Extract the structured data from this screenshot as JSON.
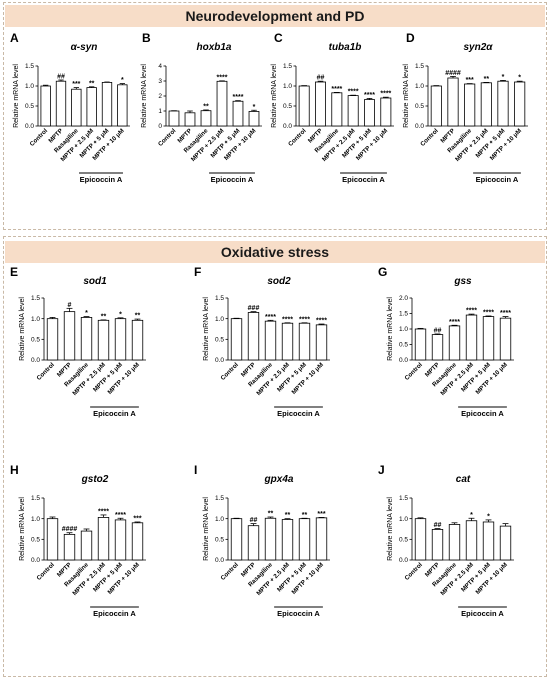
{
  "sections": [
    {
      "title": "Neurodevelopment and PD"
    },
    {
      "title": "Oxidative stress"
    }
  ],
  "chart_data": [
    {
      "type": "bar",
      "panel": "A",
      "title": "α-syn",
      "ylabel": "Relative mRNA level",
      "categories": [
        "Control",
        "MPTP",
        "Rasagiline",
        "MPTP + 2.5 μM",
        "MPTP + 5 μM",
        "MPTP + 10 μM"
      ],
      "values": [
        1.0,
        1.12,
        0.92,
        0.96,
        1.09,
        1.03
      ],
      "errors": [
        0.02,
        0.03,
        0.04,
        0.02,
        0.01,
        0.03
      ],
      "significance": [
        "",
        "##",
        "***",
        "**",
        "",
        "*"
      ],
      "ylim": [
        0,
        1.5
      ],
      "yticks": [
        0.0,
        0.5,
        1.0,
        1.5
      ],
      "tick_format": 1,
      "group_label": "Epicoccin A",
      "group_span": [
        3,
        5
      ]
    },
    {
      "type": "bar",
      "panel": "B",
      "title": "hoxb1a",
      "ylabel": "Relative mRNA level",
      "categories": [
        "Control",
        "MPTP",
        "Rasagiline",
        "MPTP + 2.5 μM",
        "MPTP + 5 μM",
        "MPTP + 10 μM"
      ],
      "values": [
        1.0,
        0.88,
        1.02,
        2.98,
        1.65,
        0.97
      ],
      "errors": [
        0.02,
        0.12,
        0.05,
        0.03,
        0.04,
        0.08
      ],
      "significance": [
        "",
        "",
        "**",
        "****",
        "****",
        "*"
      ],
      "ylim": [
        0,
        4
      ],
      "yticks": [
        0,
        1,
        2,
        3,
        4
      ],
      "tick_format": 0,
      "group_label": "Epicoccin A",
      "group_span": [
        3,
        5
      ]
    },
    {
      "type": "bar",
      "panel": "C",
      "title": "tuba1b",
      "ylabel": "Relative mRNA level",
      "categories": [
        "Control",
        "MPTP",
        "Rasagiline",
        "MPTP + 2.5 μM",
        "MPTP + 5 μM",
        "MPTP + 10 μM"
      ],
      "values": [
        1.0,
        1.1,
        0.83,
        0.76,
        0.66,
        0.7
      ],
      "errors": [
        0.01,
        0.02,
        0.01,
        0.01,
        0.03,
        0.02
      ],
      "significance": [
        "",
        "##",
        "****",
        "****",
        "****",
        "****"
      ],
      "ylim": [
        0,
        1.5
      ],
      "yticks": [
        0.0,
        0.5,
        1.0,
        1.5
      ],
      "tick_format": 1,
      "group_label": "Epicoccin A",
      "group_span": [
        3,
        5
      ]
    },
    {
      "type": "bar",
      "panel": "D",
      "title": "syn2α",
      "ylabel": "Relative mRNA level",
      "categories": [
        "Control",
        "MPTP",
        "Rasagiline",
        "MPTP + 2.5 μM",
        "MPTP + 5 μM",
        "MPTP + 10 μM"
      ],
      "values": [
        1.0,
        1.2,
        1.05,
        1.08,
        1.12,
        1.1
      ],
      "errors": [
        0.01,
        0.04,
        0.01,
        0.01,
        0.02,
        0.02
      ],
      "significance": [
        "",
        "####",
        "***",
        "**",
        "*",
        "*"
      ],
      "ylim": [
        0,
        1.5
      ],
      "yticks": [
        0.0,
        0.5,
        1.0,
        1.5
      ],
      "tick_format": 1,
      "group_label": "Epicoccin A",
      "group_span": [
        3,
        5
      ]
    },
    {
      "type": "bar",
      "panel": "E",
      "title": "sod1",
      "ylabel": "Relative mRNA level",
      "categories": [
        "Control",
        "MPTP",
        "Rasagiline",
        "MPTP + 2.5 μM",
        "MPTP + 5 μM",
        "MPTP + 10 μM"
      ],
      "values": [
        1.0,
        1.17,
        1.03,
        0.96,
        1.0,
        0.96
      ],
      "errors": [
        0.03,
        0.08,
        0.02,
        0.01,
        0.02,
        0.03
      ],
      "significance": [
        "",
        "#",
        "*",
        "**",
        "*",
        "**"
      ],
      "ylim": [
        0,
        1.5
      ],
      "yticks": [
        0.0,
        0.5,
        1.0,
        1.5
      ],
      "tick_format": 1,
      "group_label": "Epicoccin A",
      "group_span": [
        3,
        5
      ]
    },
    {
      "type": "bar",
      "panel": "F",
      "title": "sod2",
      "ylabel": "Relative mRNA level",
      "categories": [
        "Control",
        "MPTP",
        "Rasagiline",
        "MPTP + 2.5 μM",
        "MPTP + 5 μM",
        "MPTP + 10 μM"
      ],
      "values": [
        1.0,
        1.15,
        0.94,
        0.89,
        0.89,
        0.85
      ],
      "errors": [
        0.01,
        0.02,
        0.02,
        0.01,
        0.01,
        0.02
      ],
      "significance": [
        "",
        "###",
        "****",
        "****",
        "****",
        "****"
      ],
      "ylim": [
        0,
        1.5
      ],
      "yticks": [
        0.0,
        0.5,
        1.0,
        1.5
      ],
      "tick_format": 1,
      "group_label": "Epicoccin A",
      "group_span": [
        3,
        5
      ]
    },
    {
      "type": "bar",
      "panel": "G",
      "title": "gss",
      "ylabel": "Relative mRNA level",
      "categories": [
        "Control",
        "MPTP",
        "Rasagiline",
        "MPTP + 2.5 μM",
        "MPTP + 5 μM",
        "MPTP + 10 μM"
      ],
      "values": [
        1.0,
        0.82,
        1.1,
        1.45,
        1.4,
        1.35
      ],
      "errors": [
        0.02,
        0.02,
        0.02,
        0.03,
        0.02,
        0.05
      ],
      "significance": [
        "",
        "##",
        "****",
        "****",
        "****",
        "****"
      ],
      "ylim": [
        0,
        2.0
      ],
      "yticks": [
        0.0,
        0.5,
        1.0,
        1.5,
        2.0
      ],
      "tick_format": 1,
      "group_label": "Epicoccin A",
      "group_span": [
        3,
        5
      ]
    },
    {
      "type": "bar",
      "panel": "H",
      "title": "gsto2",
      "ylabel": "Relative mRNA level",
      "categories": [
        "Control",
        "MPTP",
        "Rasagiline",
        "MPTP + 2.5 μM",
        "MPTP + 5 μM",
        "MPTP + 10 μM"
      ],
      "values": [
        1.0,
        0.62,
        0.7,
        1.03,
        0.97,
        0.9
      ],
      "errors": [
        0.04,
        0.04,
        0.05,
        0.06,
        0.04,
        0.02
      ],
      "significance": [
        "",
        "####",
        "",
        "****",
        "****",
        "***"
      ],
      "ylim": [
        0,
        1.5
      ],
      "yticks": [
        0.0,
        0.5,
        1.0,
        1.5
      ],
      "tick_format": 1,
      "group_label": "Epicoccin A",
      "group_span": [
        3,
        5
      ]
    },
    {
      "type": "bar",
      "panel": "I",
      "title": "gpx4a",
      "ylabel": "Relative mRNA level",
      "categories": [
        "Control",
        "MPTP",
        "Rasagiline",
        "MPTP + 2.5 μM",
        "MPTP + 5 μM",
        "MPTP + 10 μM"
      ],
      "values": [
        1.0,
        0.83,
        1.01,
        0.98,
        1.0,
        1.02
      ],
      "errors": [
        0.01,
        0.05,
        0.03,
        0.02,
        0.01,
        0.01
      ],
      "significance": [
        "",
        "##",
        "**",
        "**",
        "**",
        "***"
      ],
      "ylim": [
        0,
        1.5
      ],
      "yticks": [
        0.0,
        0.5,
        1.0,
        1.5
      ],
      "tick_format": 1,
      "group_label": "Epicoccin A",
      "group_span": [
        3,
        5
      ]
    },
    {
      "type": "bar",
      "panel": "J",
      "title": "cat",
      "ylabel": "Relative mRNA level",
      "categories": [
        "Control",
        "MPTP",
        "Rasagiline",
        "MPTP + 2.5 μM",
        "MPTP + 5 μM",
        "MPTP + 10 μM"
      ],
      "values": [
        1.0,
        0.74,
        0.86,
        0.95,
        0.92,
        0.82
      ],
      "errors": [
        0.02,
        0.02,
        0.04,
        0.06,
        0.05,
        0.06
      ],
      "significance": [
        "",
        "##",
        "",
        "*",
        "*",
        ""
      ],
      "ylim": [
        0,
        1.5
      ],
      "yticks": [
        0.0,
        0.5,
        1.0,
        1.5
      ],
      "tick_format": 1,
      "group_label": "Epicoccin A",
      "group_span": [
        3,
        5
      ]
    }
  ]
}
